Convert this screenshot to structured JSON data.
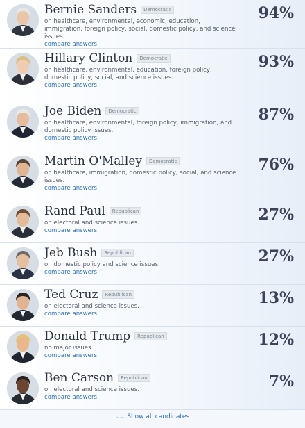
{
  "candidates": [
    {
      "name": "Bernie Sanders",
      "party": "Democratic",
      "desc": "on healthcare, environmental, economic, education, immigration, foreign policy, social, domestic policy, and science issues.",
      "compare": "compare answers",
      "pct": "94%",
      "skin": "#e9c6a8",
      "hair": "#e7e7e7",
      "suit": "#2e3440"
    },
    {
      "name": "Hillary Clinton",
      "party": "Democratic",
      "desc": "on healthcare, environmental, education, foreign policy, domestic policy, social, and science issues.",
      "compare": "compare answers",
      "pct": "93%",
      "skin": "#f0ccb0",
      "hair": "#d9bf85",
      "suit": "#2c2f38"
    },
    {
      "name": "Joe Biden",
      "party": "Democratic",
      "desc": "on healthcare, environmental, foreign policy, immigration, and domestic policy issues.",
      "compare": "compare answers",
      "pct": "87%",
      "skin": "#e6bd9c",
      "hair": "#e8e8e8",
      "suit": "#1f2533"
    },
    {
      "name": "Martin O'Malley",
      "party": "Democratic",
      "desc": "on healthcare, immigration, domestic policy, social, and science issues.",
      "compare": "compare answers",
      "pct": "76%",
      "skin": "#e2b592",
      "hair": "#5a4637",
      "suit": "#252a35"
    },
    {
      "name": "Rand Paul",
      "party": "Republican",
      "desc": "on electoral and science issues.",
      "compare": "compare answers",
      "pct": "27%",
      "skin": "#e4ba98",
      "hair": "#6b4f38",
      "suit": "#2b3038"
    },
    {
      "name": "Jeb Bush",
      "party": "Republican",
      "desc": "on domestic policy and science issues.",
      "compare": "compare answers",
      "pct": "27%",
      "skin": "#e6bf9f",
      "hair": "#6f6a66",
      "suit": "#2a3345"
    },
    {
      "name": "Ted Cruz",
      "party": "Republican",
      "desc": "on electoral and science issues.",
      "compare": "compare answers",
      "pct": "13%",
      "skin": "#e1b391",
      "hair": "#2b2520",
      "suit": "#23272f"
    },
    {
      "name": "Donald Trump",
      "party": "Republican",
      "desc": "no major issues.",
      "compare": "compare answers",
      "pct": "12%",
      "skin": "#eab68a",
      "hair": "#e1c47a",
      "suit": "#1f2430"
    },
    {
      "name": "Ben Carson",
      "party": "Republican",
      "desc": "on electoral and science issues.",
      "compare": "compare answers",
      "pct": "7%",
      "skin": "#6b4530",
      "hair": "#2a211c",
      "suit": "#262a33"
    }
  ],
  "show_all": {
    "label": "Show all candidates"
  },
  "colors": {
    "link": "#2f72b8",
    "text": "#3b4456",
    "row_border": "#d8e0ea"
  }
}
